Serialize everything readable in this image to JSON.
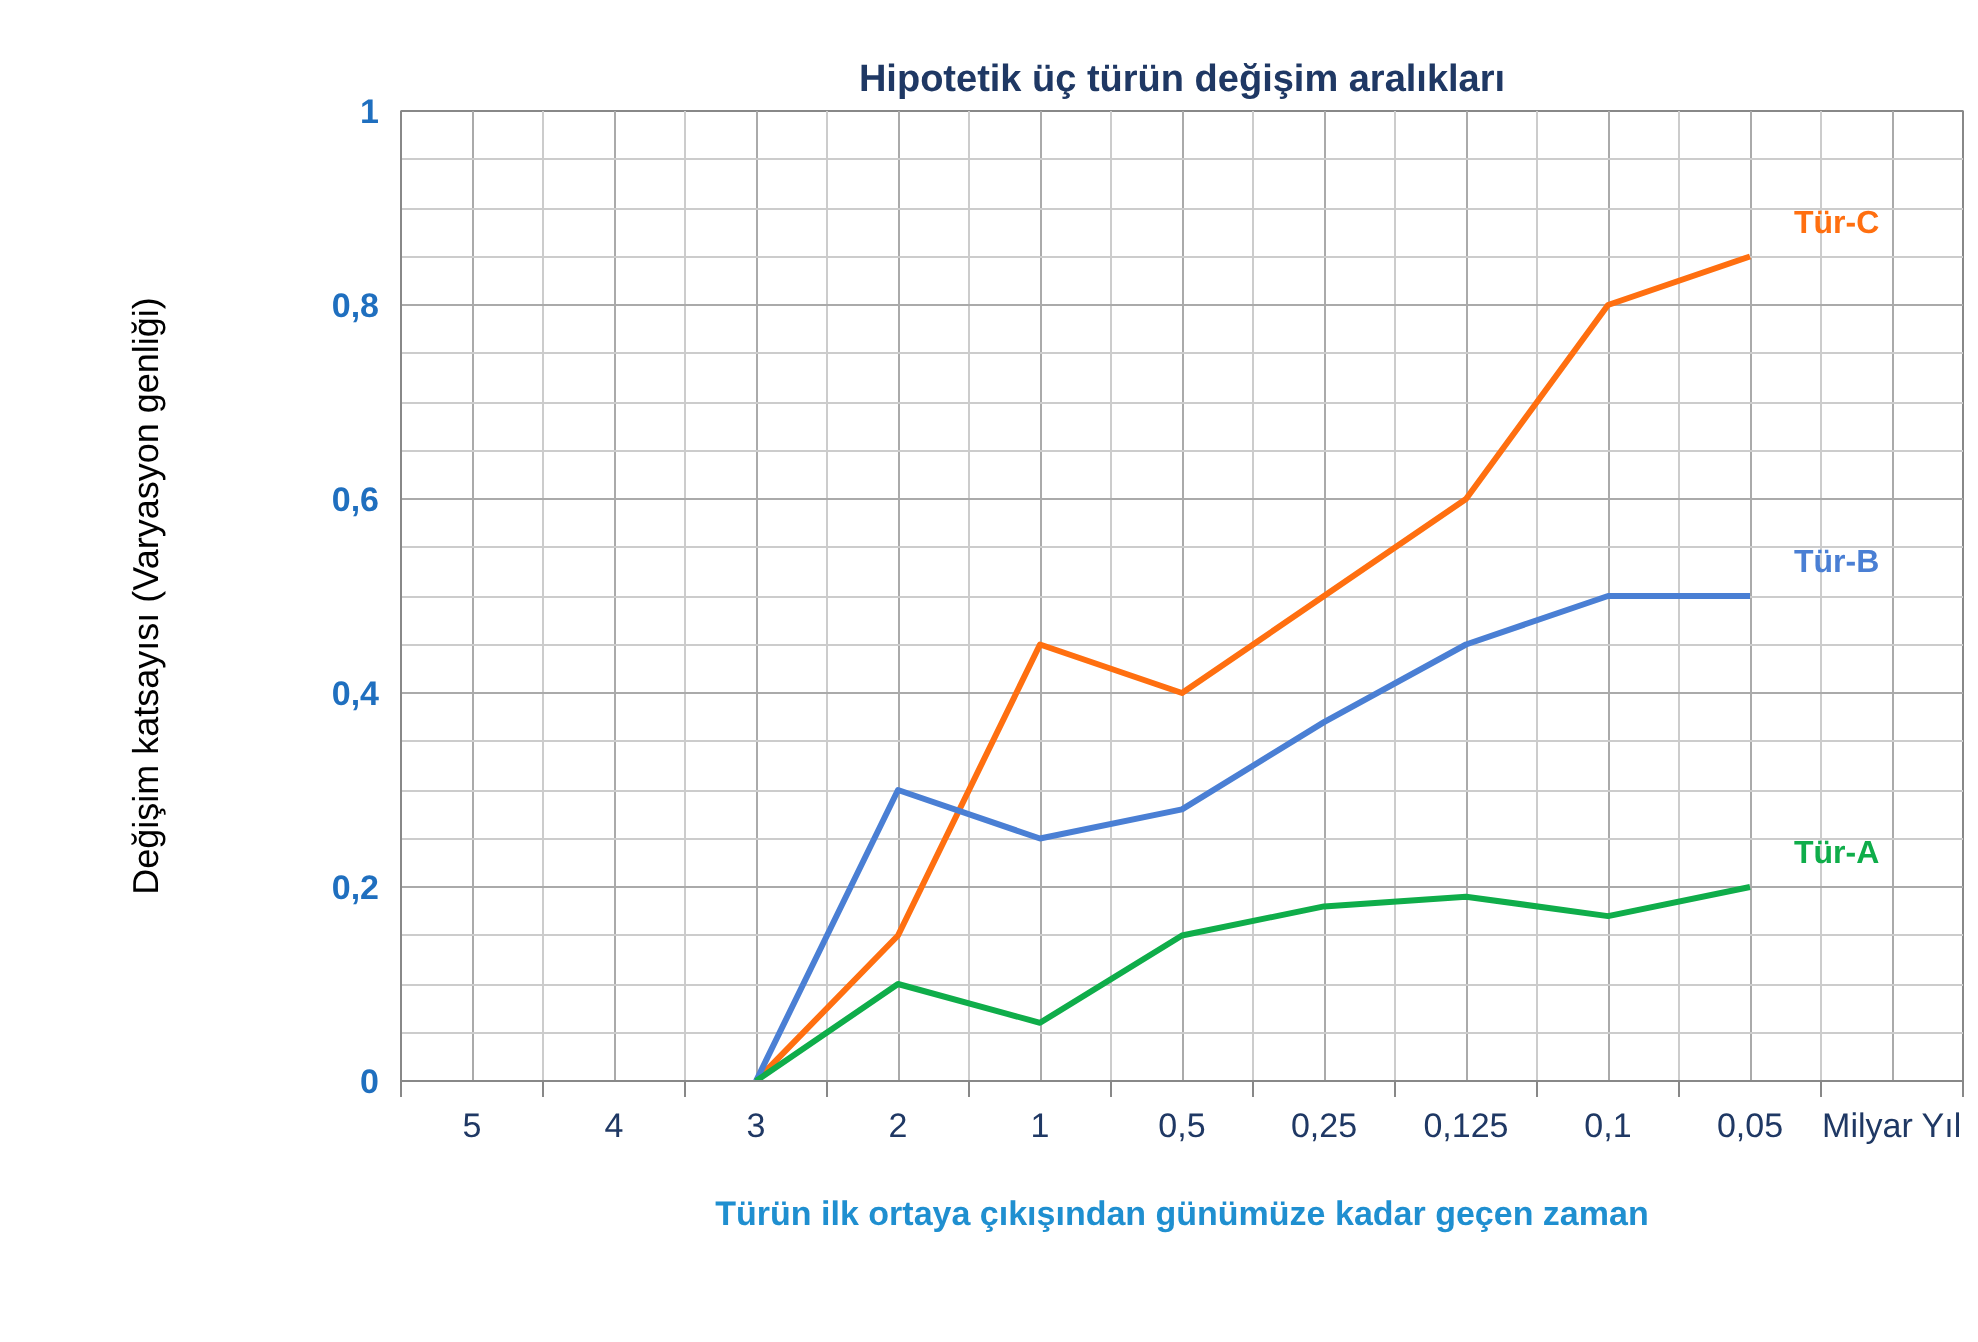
{
  "chart_data": {
    "type": "line",
    "title": "Hipotetik üç türün değişim aralıkları",
    "xlabel": "Türün ilk ortaya çıkışından günümüze kadar geçen zaman",
    "ylabel": "Değişim katsayısı (Varyasyon genliği)",
    "categories": [
      "5",
      "4",
      "3",
      "2",
      "1",
      "0,5",
      "0,25",
      "0,125",
      "0,1",
      "0,05",
      "Milyar Yıl"
    ],
    "ylim": [
      0,
      1
    ],
    "yticks": [
      0,
      {
        "value": 0.2,
        "label": "0,2"
      },
      {
        "value": 0.4,
        "label": "0,4"
      },
      {
        "value": 0.6,
        "label": "0,6"
      },
      {
        "value": 0.8,
        "label": "0,8"
      },
      1
    ],
    "grid": true,
    "line_style": "solid",
    "series": [
      {
        "name": "Tür-C",
        "color": "#ff6f10",
        "values": [
          null,
          null,
          0,
          0.15,
          0.45,
          0.4,
          0.5,
          0.6,
          0.8,
          0.85,
          null
        ]
      },
      {
        "name": "Tür-B",
        "color": "#4a7fd4",
        "values": [
          null,
          null,
          0,
          0.3,
          0.25,
          0.28,
          0.37,
          0.45,
          0.5,
          0.5,
          null
        ]
      },
      {
        "name": "Tür-A",
        "color": "#0fad4a",
        "values": [
          null,
          null,
          0,
          0.1,
          0.06,
          0.15,
          0.18,
          0.19,
          0.17,
          0.2,
          null
        ]
      }
    ]
  }
}
